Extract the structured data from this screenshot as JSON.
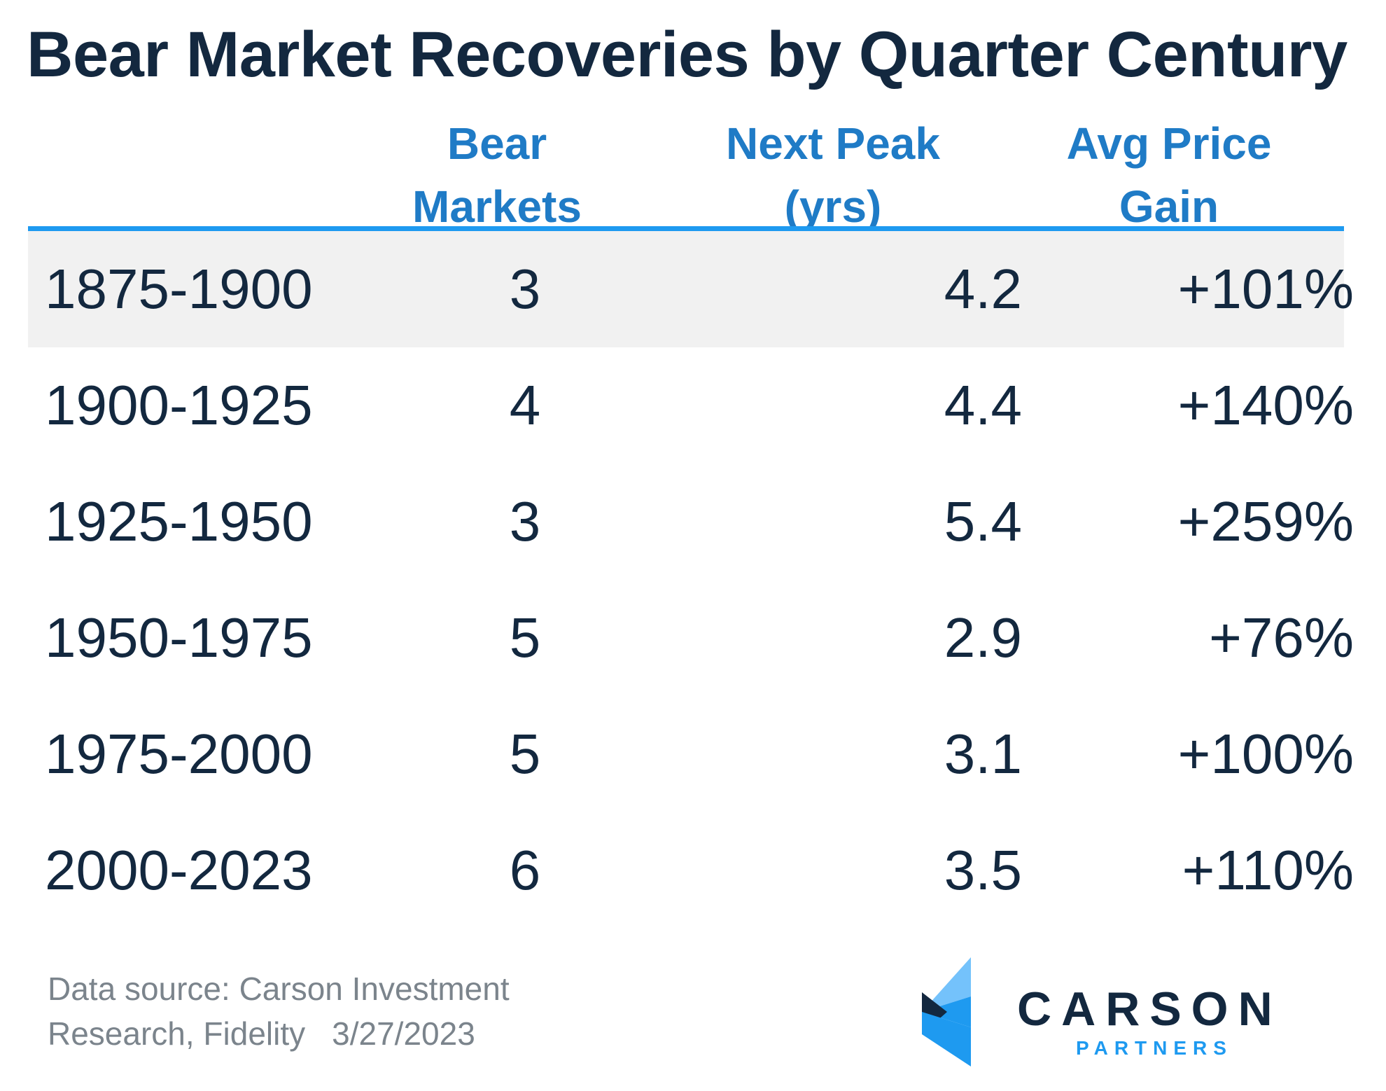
{
  "title": "Bear Market Recoveries by Quarter Century",
  "columns": {
    "bear_line1": "Bear",
    "bear_line2": "Markets",
    "peak_line1": "Next Peak",
    "peak_line2": "(yrs)",
    "gain_line1": "Avg Price",
    "gain_line2": "Gain"
  },
  "rows": [
    {
      "period": "1875-1900",
      "bear": "3",
      "peak": "4.2",
      "gain": "+101%"
    },
    {
      "period": "1900-1925",
      "bear": "4",
      "peak": "4.4",
      "gain": "+140%"
    },
    {
      "period": "1925-1950",
      "bear": "3",
      "peak": "5.4",
      "gain": "+259%"
    },
    {
      "period": "1950-1975",
      "bear": "5",
      "peak": "2.9",
      "gain": "+76%"
    },
    {
      "period": "1975-2000",
      "bear": "5",
      "peak": "3.1",
      "gain": "+100%"
    },
    {
      "period": "2000-2023",
      "bear": "6",
      "peak": "3.5",
      "gain": "+110%"
    }
  ],
  "source": {
    "line1": "Data source: Carson Investment",
    "line2": "Research, Fidelity",
    "date": "3/27/2023"
  },
  "logo": {
    "brand": "CARSON",
    "sub": "PARTNERS"
  },
  "colors": {
    "title": "#13283f",
    "header": "#1f7bc6",
    "rule": "#1e9af0",
    "shade": "#f1f1f1"
  },
  "chart_data": {
    "type": "table",
    "title": "Bear Market Recoveries by Quarter Century",
    "columns": [
      "",
      "Bear Markets",
      "Next Peak (yrs)",
      "Avg Price Gain"
    ],
    "rows": [
      [
        "1875-1900",
        3,
        4.2,
        "+101%"
      ],
      [
        "1900-1925",
        4,
        4.4,
        "+140%"
      ],
      [
        "1925-1950",
        3,
        5.4,
        "+259%"
      ],
      [
        "1950-1975",
        5,
        2.9,
        "+76%"
      ],
      [
        "1975-2000",
        5,
        3.1,
        "+100%"
      ],
      [
        "2000-2023",
        6,
        3.5,
        "+110%"
      ]
    ]
  }
}
